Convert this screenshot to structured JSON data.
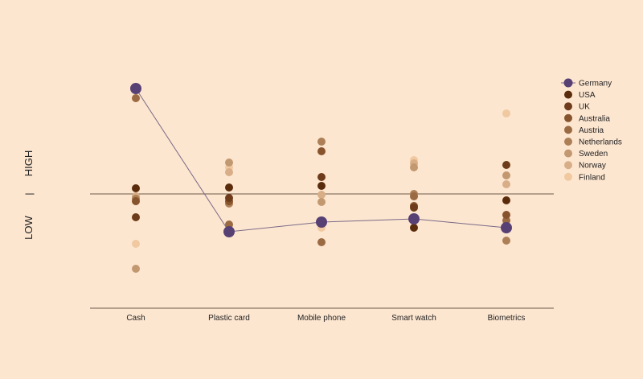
{
  "chart_data": {
    "type": "scatter",
    "title": "",
    "ylabel_high": "HIGH",
    "ylabel_low": "LOW",
    "ylabel_divider": "|",
    "ylim": [
      -14.2,
      14.2
    ],
    "baseline": 0,
    "categories": [
      "Cash",
      "Plastic card",
      "Mobile phone",
      "Smart watch",
      "Biometrics"
    ],
    "legend_position": "right",
    "series": [
      {
        "name": "Germany",
        "color": "#574074",
        "highlight": true,
        "values": [
          13.1,
          -4.7,
          -3.5,
          -3.1,
          -4.2
        ]
      },
      {
        "name": "USA",
        "color": "#5a2c0c",
        "values": [
          0.7,
          0.8,
          1.0,
          -4.2,
          -0.8
        ]
      },
      {
        "name": "UK",
        "color": "#6e3c1a",
        "values": [
          -2.9,
          -0.5,
          2.1,
          -1.7,
          3.6
        ]
      },
      {
        "name": "Australia",
        "color": "#86532c",
        "values": [
          -0.9,
          -0.9,
          5.3,
          -1.5,
          -2.6
        ]
      },
      {
        "name": "Austria",
        "color": "#9a6a42",
        "values": [
          11.9,
          -3.8,
          -6.0,
          -0.3,
          -3.3
        ]
      },
      {
        "name": "Netherlands",
        "color": "#ac7f57",
        "values": [
          -0.6,
          -1.2,
          6.5,
          0.0,
          -5.8
        ]
      },
      {
        "name": "Sweden",
        "color": "#c29870",
        "values": [
          -9.3,
          3.9,
          -1.0,
          3.3,
          2.3
        ]
      },
      {
        "name": "Norway",
        "color": "#d8ae88",
        "values": [
          -0.3,
          2.7,
          -0.1,
          3.8,
          1.2
        ]
      },
      {
        "name": "Finland",
        "color": "#f0c9a0",
        "values": [
          -6.2,
          3.3,
          -4.2,
          4.2,
          10.0
        ]
      }
    ]
  }
}
